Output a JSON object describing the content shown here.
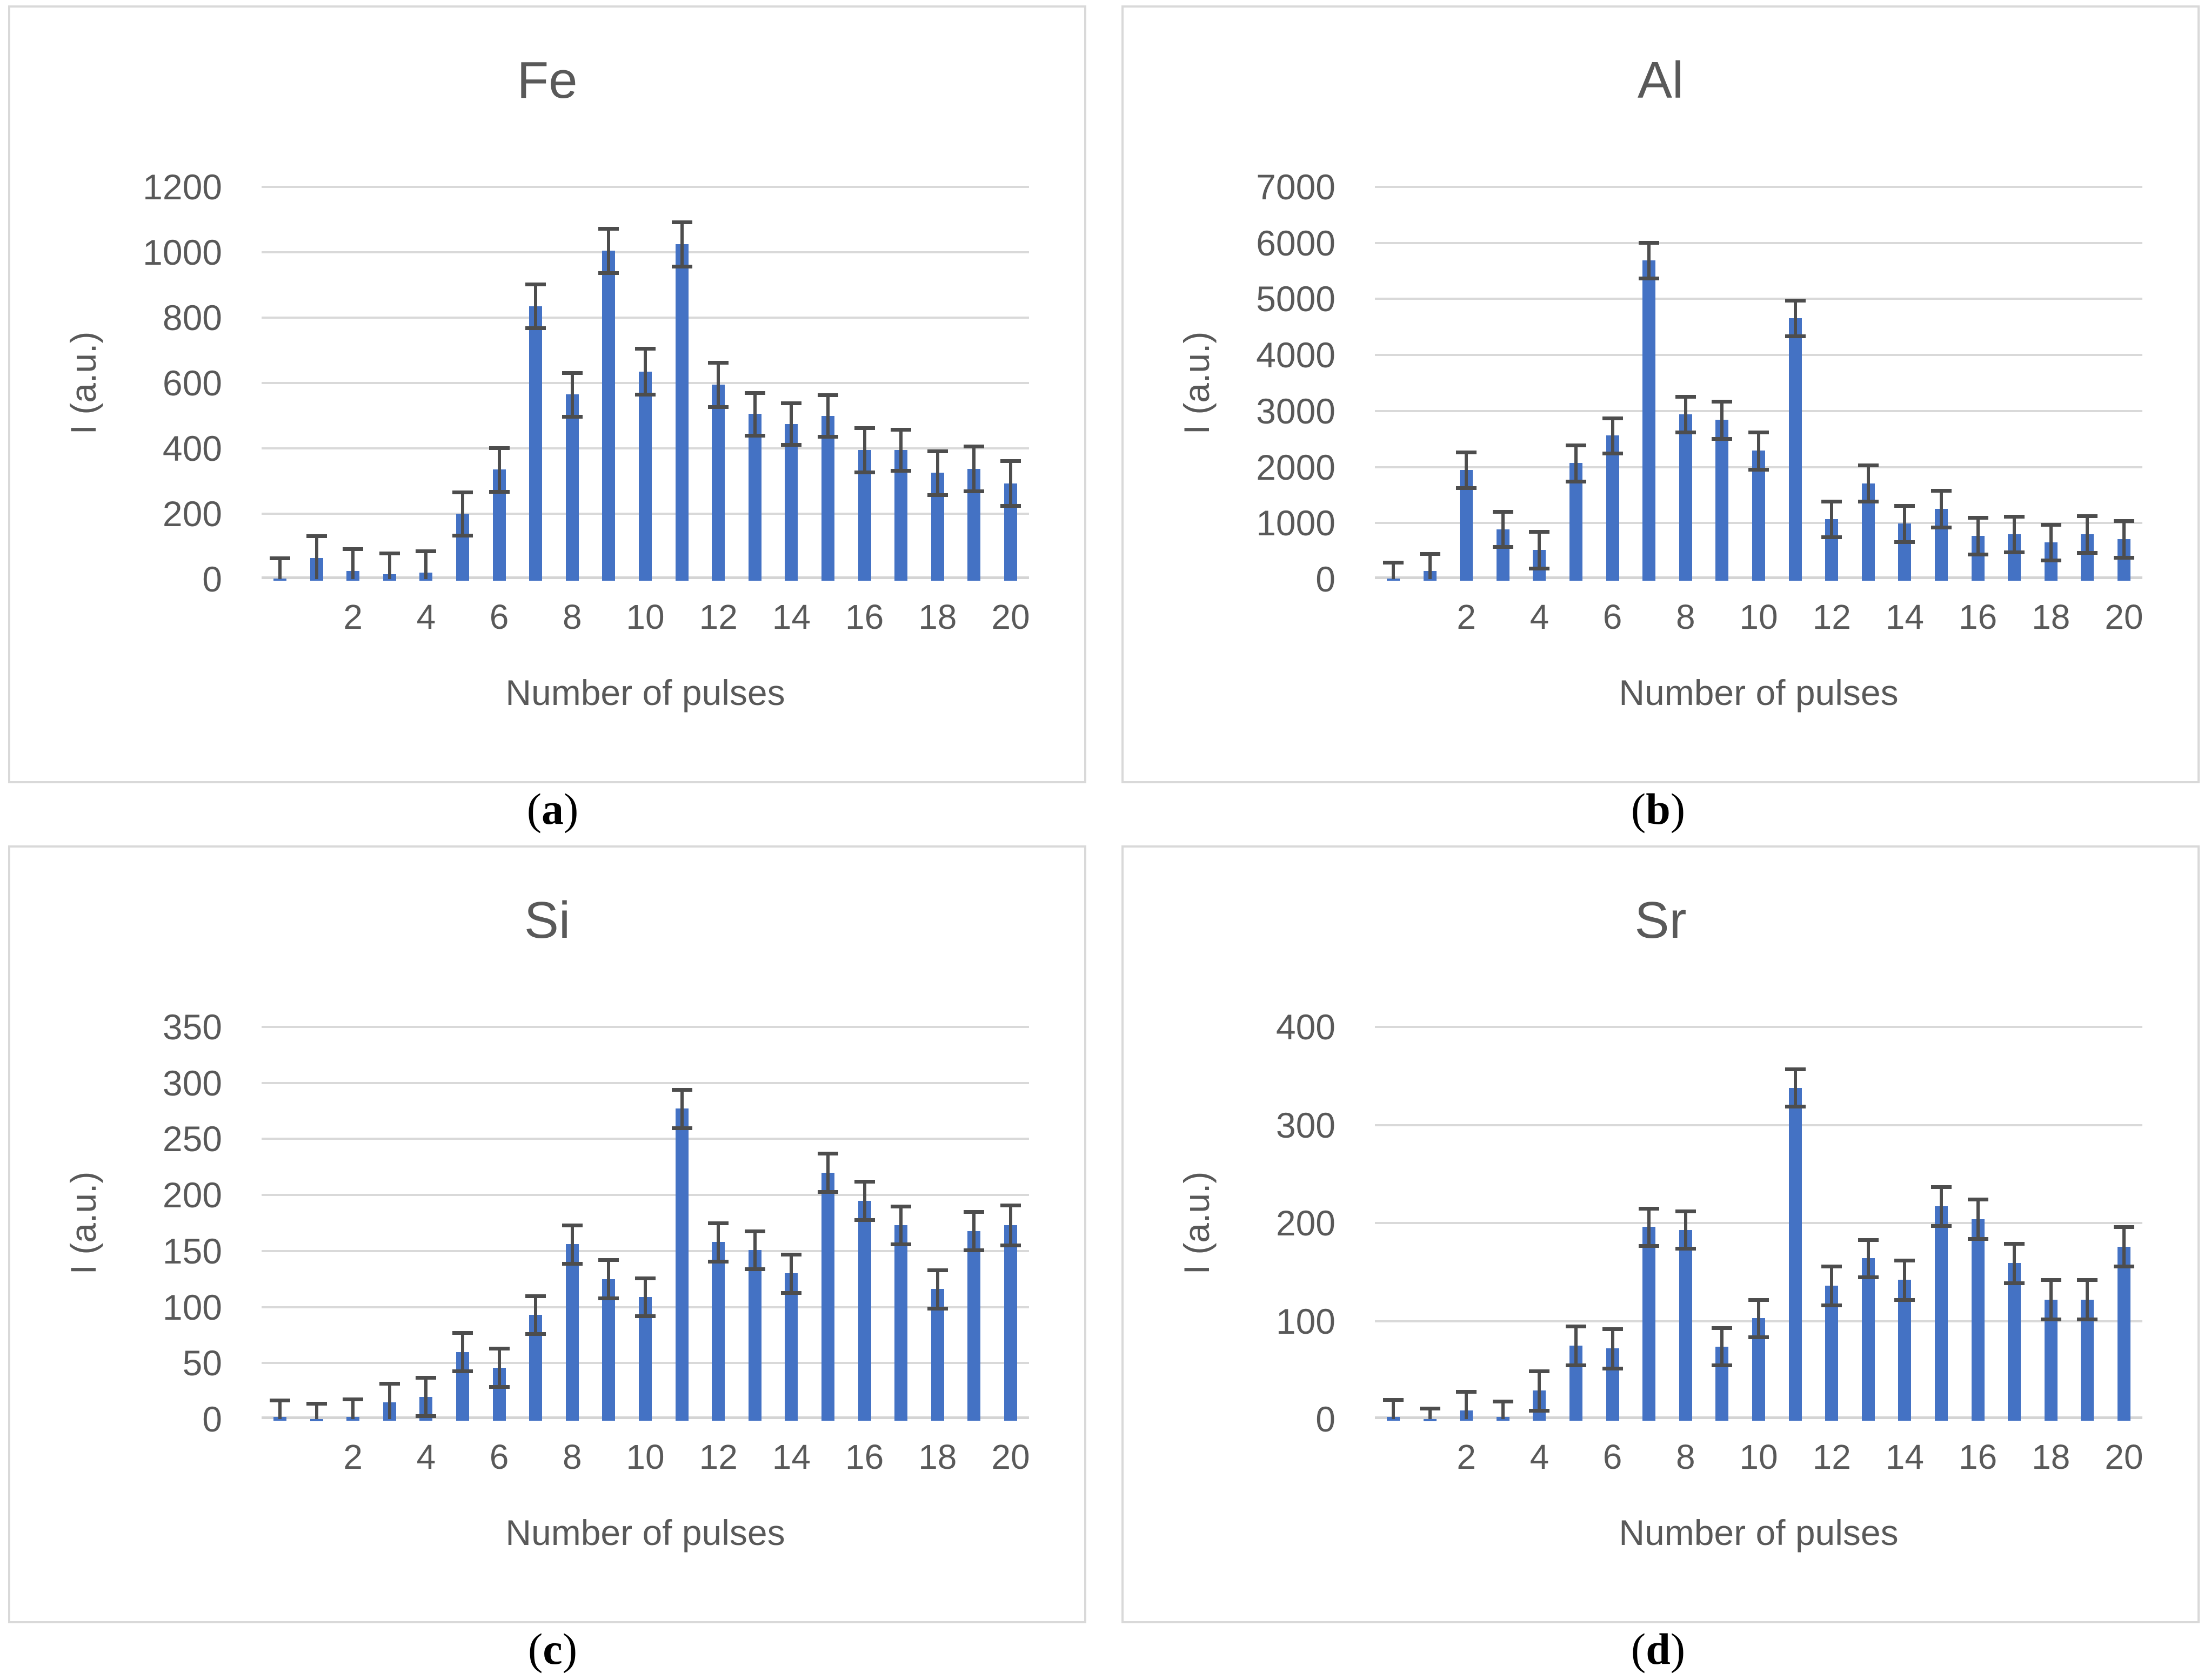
{
  "figure": {
    "description": "Four bar charts with error bars showing emission line intensity versus number of laser pulses",
    "grid": true,
    "legend": null
  },
  "captions": {
    "open": "(",
    "close": ")",
    "letters": [
      "a",
      "b",
      "c",
      "d"
    ]
  },
  "style": {
    "bar_color": "#4472c4",
    "error_bar_color": "#4d4d4d",
    "gridline_color": "#d9d9d9",
    "text_color": "#595959",
    "panel_border_color": "#d9d9d9"
  },
  "chart_data": [
    {
      "type": "bar",
      "title": "Fe",
      "xlabel": "Number of pulses",
      "ylabel": "I (a.u.)",
      "ylim": [
        0,
        1200
      ],
      "yticks": [
        0,
        200,
        400,
        600,
        800,
        1000,
        1200
      ],
      "categories": [
        "",
        "1",
        "2",
        "3",
        "4",
        "5",
        "6",
        "7",
        "8",
        "9",
        "10",
        "11",
        "12",
        "13",
        "14",
        "15",
        "16",
        "17",
        "18",
        "19",
        "20"
      ],
      "xticks_shown": [
        "2",
        "4",
        "6",
        "8",
        "10",
        "12",
        "14",
        "16",
        "18",
        "20"
      ],
      "values": [
        2,
        65,
        25,
        15,
        20,
        200,
        335,
        835,
        565,
        1005,
        635,
        1025,
        595,
        505,
        475,
        500,
        395,
        395,
        325,
        338,
        293
      ],
      "errors": [
        63,
        68,
        67,
        65,
        66,
        66,
        67,
        67,
        67,
        68,
        70,
        68,
        68,
        66,
        64,
        64,
        67,
        63,
        67,
        68,
        69
      ]
    },
    {
      "type": "bar",
      "title": "Al",
      "xlabel": "Number of pulses",
      "ylabel": "I (a.u.)",
      "ylim": [
        0,
        7000
      ],
      "yticks": [
        0,
        1000,
        2000,
        3000,
        4000,
        5000,
        6000,
        7000
      ],
      "categories": [
        "",
        "1",
        "2",
        "3",
        "4",
        "5",
        "6",
        "7",
        "8",
        "9",
        "10",
        "11",
        "12",
        "13",
        "14",
        "15",
        "16",
        "17",
        "18",
        "19",
        "20"
      ],
      "xticks_shown": [
        "2",
        "4",
        "6",
        "8",
        "10",
        "12",
        "14",
        "16",
        "18",
        "20"
      ],
      "values": [
        10,
        140,
        1950,
        890,
        520,
        2070,
        2560,
        5690,
        2940,
        2840,
        2290,
        4660,
        1070,
        1710,
        990,
        1255,
        770,
        800,
        655,
        800,
        715
      ],
      "errors": [
        290,
        310,
        320,
        315,
        330,
        320,
        310,
        315,
        320,
        335,
        335,
        320,
        320,
        320,
        325,
        330,
        330,
        320,
        320,
        325,
        330
      ]
    },
    {
      "type": "bar",
      "title": "Si",
      "xlabel": "Number of pulses",
      "ylabel": "I (a.u.)",
      "ylim": [
        0,
        350
      ],
      "yticks": [
        0,
        50,
        100,
        150,
        200,
        250,
        300,
        350
      ],
      "categories": [
        "",
        "1",
        "2",
        "3",
        "4",
        "5",
        "6",
        "7",
        "8",
        "9",
        "10",
        "11",
        "12",
        "13",
        "14",
        "15",
        "16",
        "17",
        "18",
        "19",
        "20"
      ],
      "xticks_shown": [
        "2",
        "4",
        "6",
        "8",
        "10",
        "12",
        "14",
        "16",
        "18",
        "20"
      ],
      "values": [
        2,
        -2,
        2,
        15,
        20,
        60,
        46,
        93,
        156,
        125,
        109,
        277,
        158,
        151,
        130,
        220,
        195,
        173,
        116,
        168,
        173
      ],
      "errors": [
        15,
        16,
        16,
        17,
        17,
        17,
        17,
        17,
        17,
        17,
        17,
        17,
        17,
        17,
        17,
        17,
        17,
        17,
        17,
        17,
        18
      ]
    },
    {
      "type": "bar",
      "title": "Sr",
      "xlabel": "Number of pulses",
      "ylabel": "I (a.u.)",
      "ylim": [
        0,
        400
      ],
      "yticks": [
        0,
        100,
        200,
        300,
        400
      ],
      "categories": [
        "",
        "1",
        "2",
        "3",
        "4",
        "5",
        "6",
        "7",
        "8",
        "9",
        "10",
        "11",
        "12",
        "13",
        "14",
        "15",
        "16",
        "17",
        "18",
        "19",
        "20"
      ],
      "xticks_shown": [
        "2",
        "4",
        "6",
        "8",
        "10",
        "12",
        "14",
        "16",
        "18",
        "20"
      ],
      "values": [
        2,
        -2,
        9,
        2,
        29,
        75,
        72,
        196,
        193,
        74,
        103,
        338,
        136,
        164,
        142,
        217,
        204,
        159,
        122,
        122,
        176
      ],
      "errors": [
        18,
        13,
        19,
        16,
        20,
        20,
        20,
        19,
        19,
        19,
        19,
        19,
        20,
        19,
        20,
        20,
        20,
        20,
        20,
        20,
        20
      ]
    }
  ]
}
